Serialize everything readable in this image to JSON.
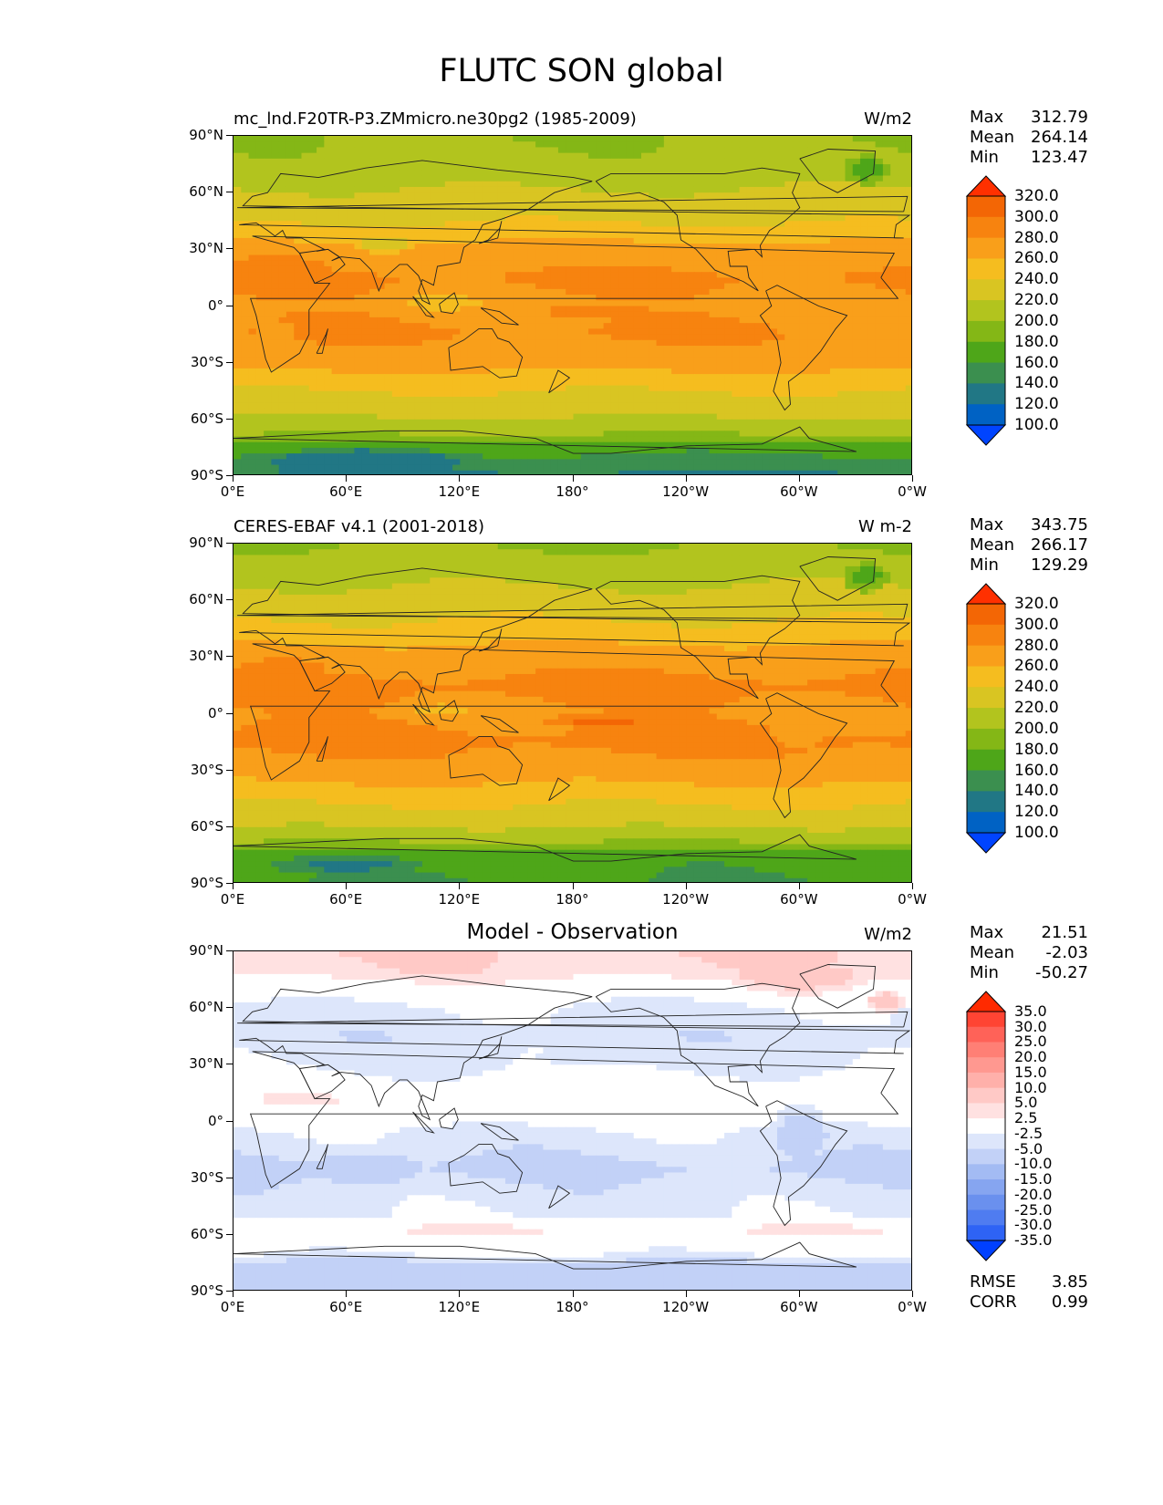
{
  "title": "FLUTC SON global",
  "chart_data": [
    {
      "type": "heatmap",
      "id": "model",
      "title_left": "mc_lnd.F20TR-P3.ZMmicro.ne30pg2 (1985-2009)",
      "title_center": "",
      "units": "W/m2",
      "stats": [
        [
          "Max",
          "312.79"
        ],
        [
          "Mean",
          "264.14"
        ],
        [
          "Min",
          "123.47"
        ]
      ],
      "yticks": [
        "90°N",
        "60°N",
        "30°N",
        "0°",
        "30°S",
        "60°S",
        "90°S"
      ],
      "xticks": [
        "0°E",
        "60°E",
        "120°E",
        "180°",
        "120°W",
        "60°W",
        "0°W"
      ],
      "colorbar": {
        "levels": [
          "100.0",
          "120.0",
          "140.0",
          "160.0",
          "180.0",
          "200.0",
          "220.0",
          "240.0",
          "260.0",
          "280.0",
          "300.0",
          "320.0"
        ],
        "colors": [
          "#0044ff",
          "#0062c4",
          "#217785",
          "#3b8f4f",
          "#4ea619",
          "#84b716",
          "#b2c41e",
          "#d9c522",
          "#f5bd1f",
          "#f99f1a",
          "#f7830f",
          "#f36605",
          "#ff3000"
        ]
      },
      "zonal_mean": [
        {
          "lat": 90,
          "v": 200
        },
        {
          "lat": 75,
          "v": 205
        },
        {
          "lat": 60,
          "v": 222
        },
        {
          "lat": 45,
          "v": 238
        },
        {
          "lat": 30,
          "v": 268
        },
        {
          "lat": 15,
          "v": 283
        },
        {
          "lat": 0,
          "v": 275
        },
        {
          "lat": -15,
          "v": 282
        },
        {
          "lat": -30,
          "v": 268
        },
        {
          "lat": -45,
          "v": 240
        },
        {
          "lat": -58,
          "v": 222
        },
        {
          "lat": -68,
          "v": 200
        },
        {
          "lat": -76,
          "v": 165
        },
        {
          "lat": -90,
          "v": 135
        }
      ],
      "anomalies": [
        {
          "lon": 195,
          "lat": -3,
          "rlon": 28,
          "rlat": 3.5,
          "v": 300
        },
        {
          "lon": 140,
          "lat": -22,
          "rlon": 12,
          "rlat": 6,
          "v": 278
        },
        {
          "lon": 25,
          "lat": 20,
          "rlon": 25,
          "rlat": 7,
          "v": 285
        },
        {
          "lon": 335,
          "lat": 72,
          "rlon": 12,
          "rlat": 8,
          "v": 170
        },
        {
          "lon": 80,
          "lat": 33,
          "rlon": 18,
          "rlat": 5,
          "v": 232
        },
        {
          "lon": 300,
          "lat": -8,
          "rlon": 15,
          "rlat": 10,
          "v": 262
        },
        {
          "lon": 110,
          "lat": 2,
          "rlon": 30,
          "rlat": 6,
          "v": 255
        },
        {
          "lon": 70,
          "lat": -82,
          "rlon": 55,
          "rlat": 7,
          "v": 128
        },
        {
          "lon": 22,
          "lat": -15,
          "rlon": 10,
          "rlat": 8,
          "v": 270
        }
      ]
    },
    {
      "type": "heatmap",
      "id": "obs",
      "title_left": "CERES-EBAF v4.1 (2001-2018)",
      "title_center": "",
      "units": "W m-2",
      "stats": [
        [
          "Max",
          "343.75"
        ],
        [
          "Mean",
          "266.17"
        ],
        [
          "Min",
          "129.29"
        ]
      ],
      "yticks": [
        "90°N",
        "60°N",
        "30°N",
        "0°",
        "30°S",
        "60°S",
        "90°S"
      ],
      "xticks": [
        "0°E",
        "60°E",
        "120°E",
        "180°",
        "120°W",
        "60°W",
        "0°W"
      ],
      "colorbar": {
        "levels": [
          "100.0",
          "120.0",
          "140.0",
          "160.0",
          "180.0",
          "200.0",
          "220.0",
          "240.0",
          "260.0",
          "280.0",
          "300.0",
          "320.0"
        ],
        "colors": [
          "#0044ff",
          "#0062c4",
          "#217785",
          "#3b8f4f",
          "#4ea619",
          "#84b716",
          "#b2c41e",
          "#d9c522",
          "#f5bd1f",
          "#f99f1a",
          "#f7830f",
          "#f36605",
          "#ff3000"
        ]
      },
      "zonal_mean": [
        {
          "lat": 90,
          "v": 198
        },
        {
          "lat": 75,
          "v": 212
        },
        {
          "lat": 60,
          "v": 228
        },
        {
          "lat": 45,
          "v": 245
        },
        {
          "lat": 30,
          "v": 272
        },
        {
          "lat": 15,
          "v": 285
        },
        {
          "lat": 0,
          "v": 277
        },
        {
          "lat": -15,
          "v": 285
        },
        {
          "lat": -30,
          "v": 272
        },
        {
          "lat": -45,
          "v": 245
        },
        {
          "lat": -58,
          "v": 225
        },
        {
          "lat": -68,
          "v": 200
        },
        {
          "lat": -76,
          "v": 165
        },
        {
          "lat": -90,
          "v": 160
        }
      ],
      "anomalies": [
        {
          "lon": 195,
          "lat": -4,
          "rlon": 30,
          "rlat": 4,
          "v": 305
        },
        {
          "lon": 25,
          "lat": 22,
          "rlon": 25,
          "rlat": 7,
          "v": 290
        },
        {
          "lon": 335,
          "lat": 72,
          "rlon": 12,
          "rlat": 8,
          "v": 170
        },
        {
          "lon": 60,
          "lat": -80,
          "rlon": 40,
          "rlat": 5,
          "v": 135
        },
        {
          "lon": 300,
          "lat": -8,
          "rlon": 15,
          "rlat": 10,
          "v": 262
        },
        {
          "lon": 110,
          "lat": 2,
          "rlon": 30,
          "rlat": 6,
          "v": 258
        }
      ]
    },
    {
      "type": "heatmap",
      "id": "diff",
      "title_left": "",
      "title_center": "Model - Observation",
      "units": "W/m2",
      "stats": [
        [
          "Max",
          "21.51"
        ],
        [
          "Mean",
          "-2.03"
        ],
        [
          "Min",
          "-50.27"
        ]
      ],
      "metrics": [
        [
          "RMSE",
          "3.85"
        ],
        [
          "CORR",
          "0.99"
        ]
      ],
      "yticks": [
        "90°N",
        "60°N",
        "30°N",
        "0°",
        "30°S",
        "60°S",
        "90°S"
      ],
      "xticks": [
        "0°E",
        "60°E",
        "120°E",
        "180°",
        "120°W",
        "60°W",
        "0°W"
      ],
      "colorbar": {
        "levels": [
          "-35.0",
          "-30.0",
          "-25.0",
          "-20.0",
          "-15.0",
          "-10.0",
          "-5.0",
          "-2.5",
          "2.5",
          "5.0",
          "10.0",
          "15.0",
          "20.0",
          "25.0",
          "30.0",
          "35.0"
        ],
        "colors": [
          "#0040ff",
          "#2e63f5",
          "#4f7cf0",
          "#6a90ee",
          "#86a5f0",
          "#a3bbf3",
          "#c2d1f7",
          "#dde6fb",
          "#ffffff",
          "#ffe1e1",
          "#ffc9c6",
          "#ffb0aa",
          "#ff9890",
          "#ff7f75",
          "#ff6258",
          "#ff4433",
          "#ff2a00"
        ]
      },
      "zonal_mean": [
        {
          "lat": 90,
          "v": 5
        },
        {
          "lat": 78,
          "v": 4
        },
        {
          "lat": 70,
          "v": 0
        },
        {
          "lat": 60,
          "v": -3
        },
        {
          "lat": 45,
          "v": -4
        },
        {
          "lat": 30,
          "v": -3
        },
        {
          "lat": 15,
          "v": 0
        },
        {
          "lat": 5,
          "v": 1
        },
        {
          "lat": -5,
          "v": -3
        },
        {
          "lat": -15,
          "v": -4
        },
        {
          "lat": -25,
          "v": -6
        },
        {
          "lat": -35,
          "v": -4
        },
        {
          "lat": -50,
          "v": -3
        },
        {
          "lat": -57,
          "v": 3
        },
        {
          "lat": -62,
          "v": 0
        },
        {
          "lat": -70,
          "v": -2
        },
        {
          "lat": -80,
          "v": -9
        },
        {
          "lat": -90,
          "v": -6
        }
      ],
      "anomalies": [
        {
          "lon": 35,
          "lat": 12,
          "rlon": 22,
          "rlat": 4,
          "v": 4
        },
        {
          "lon": 300,
          "lat": 75,
          "rlon": 35,
          "rlat": 8,
          "v": 6
        },
        {
          "lon": 345,
          "lat": 63,
          "rlon": 10,
          "rlat": 6,
          "v": 8
        },
        {
          "lon": 300,
          "lat": -5,
          "rlon": 15,
          "rlat": 15,
          "v": -6
        },
        {
          "lon": 70,
          "lat": -25,
          "rlon": 30,
          "rlat": 8,
          "v": -9
        },
        {
          "lon": 200,
          "lat": 35,
          "rlon": 40,
          "rlat": 6,
          "v": -4
        }
      ]
    }
  ]
}
